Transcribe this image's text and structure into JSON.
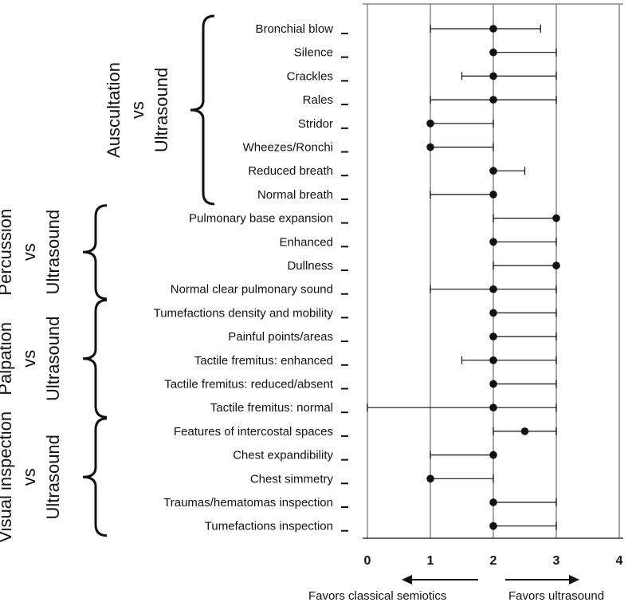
{
  "chart_data": {
    "type": "forest",
    "xlim": [
      0,
      4
    ],
    "x_ticks": [
      "0",
      "1",
      "2",
      "3",
      "4"
    ],
    "footer": {
      "left": "Favors classical semiotics",
      "right": "Favors ultrasound"
    },
    "groups": [
      {
        "label_lines": [
          "Auscultation",
          "vs",
          "Ultrasound"
        ],
        "rows": [
          {
            "label": "Bronchial blow",
            "point": 2,
            "low": 1,
            "high": 2.75
          },
          {
            "label": "Silence",
            "point": 2,
            "low": 2,
            "high": 3
          },
          {
            "label": "Crackles",
            "point": 2,
            "low": 1.5,
            "high": 3
          },
          {
            "label": "Rales",
            "point": 2,
            "low": 1,
            "high": 3
          },
          {
            "label": "Stridor",
            "point": 1,
            "low": 1,
            "high": 2
          },
          {
            "label": "Wheezes/Ronchi",
            "point": 1,
            "low": 1,
            "high": 2
          },
          {
            "label": "Reduced breath",
            "point": 2,
            "low": 2,
            "high": 2.5
          },
          {
            "label": "Normal breath",
            "point": 2,
            "low": 1,
            "high": 2
          }
        ]
      },
      {
        "label_lines": [
          "Percussion",
          "vs",
          "Ultrasound"
        ],
        "rows": [
          {
            "label": "Pulmonary base expansion",
            "point": 3,
            "low": 2,
            "high": 3
          },
          {
            "label": "Enhanced",
            "point": 2,
            "low": 2,
            "high": 3
          },
          {
            "label": "Dullness",
            "point": 3,
            "low": 2,
            "high": 3
          },
          {
            "label": "Normal clear pulmonary sound",
            "point": 2,
            "low": 1,
            "high": 3
          }
        ]
      },
      {
        "label_lines": [
          "Palpation",
          "vs",
          "Ultrasound"
        ],
        "rows": [
          {
            "label": "Tumefactions density and mobility",
            "point": 2,
            "low": 2,
            "high": 3
          },
          {
            "label": "Painful points/areas",
            "point": 2,
            "low": 2,
            "high": 3
          },
          {
            "label": "Tactile fremitus: enhanced",
            "point": 2,
            "low": 1.5,
            "high": 3
          },
          {
            "label": "Tactile fremitus: reduced/absent",
            "point": 2,
            "low": 2,
            "high": 3
          },
          {
            "label": "Tactile fremitus: normal",
            "point": 2,
            "low": 0,
            "high": 3
          }
        ]
      },
      {
        "label_lines": [
          "Visual inspection",
          "vs",
          "Ultrasound"
        ],
        "rows": [
          {
            "label": "Features of intercostal spaces",
            "point": 2.5,
            "low": 2,
            "high": 3
          },
          {
            "label": "Chest expandibility",
            "point": 2,
            "low": 1,
            "high": 2
          },
          {
            "label": "Chest simmetry",
            "point": 1,
            "low": 1,
            "high": 2
          },
          {
            "label": "Traumas/hematomas inspection",
            "point": 2,
            "low": 2,
            "high": 3
          },
          {
            "label": "Tumefactions inspection",
            "point": 2,
            "low": 2,
            "high": 3
          }
        ]
      }
    ]
  }
}
